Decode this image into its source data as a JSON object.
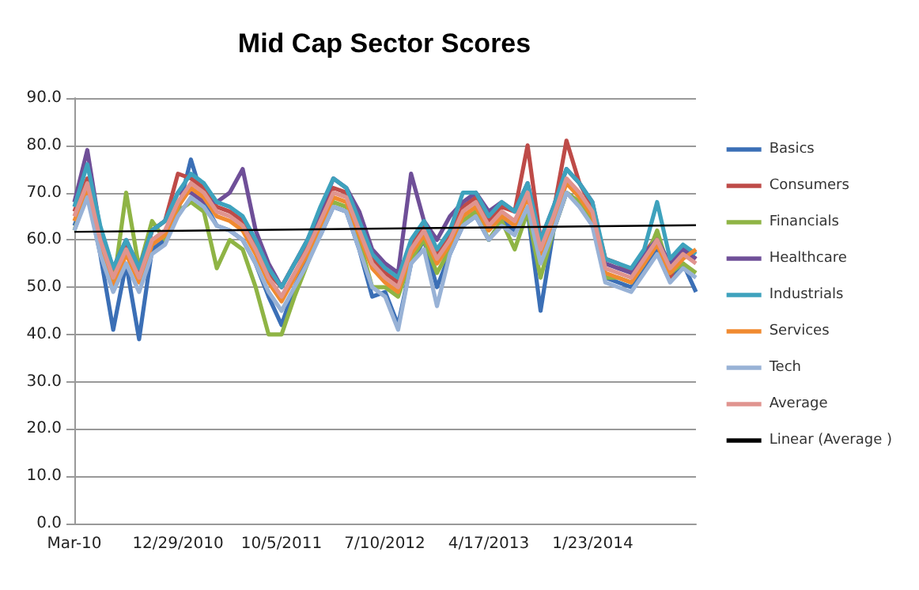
{
  "chart_data": {
    "type": "line",
    "title": "Mid Cap Sector Scores",
    "marker": "none",
    "grid": "y",
    "legend": "right",
    "x": [
      "2010-03-24",
      "2010-04-28",
      "2010-06-02",
      "2010-07-07",
      "2010-08-11",
      "2010-09-15",
      "2010-10-20",
      "2010-11-24",
      "2010-12-29",
      "2011-02-02",
      "2011-03-09",
      "2011-04-13",
      "2011-05-18",
      "2011-06-22",
      "2011-07-27",
      "2011-08-31",
      "2011-10-05",
      "2011-11-09",
      "2011-12-14",
      "2012-01-18",
      "2012-02-22",
      "2012-03-28",
      "2012-05-02",
      "2012-06-06",
      "2012-07-11",
      "2012-08-15",
      "2012-09-19",
      "2012-10-24",
      "2012-11-28",
      "2013-01-02",
      "2013-02-06",
      "2013-03-13",
      "2013-04-17",
      "2013-05-22",
      "2013-06-26",
      "2013-07-31",
      "2013-09-04",
      "2013-10-09",
      "2013-11-13",
      "2013-12-18",
      "2014-01-22",
      "2014-02-26",
      "2014-04-02",
      "2014-05-07",
      "2014-06-11",
      "2014-07-16",
      "2014-08-20",
      "2014-09-24",
      "2014-10-29"
    ],
    "xlim": [
      "2010-03-24",
      "2014-10-29"
    ],
    "xticks": [
      {
        "value": "2010-03-24",
        "label": "Mar-10"
      },
      {
        "value": "2010-12-29",
        "label": "12/29/2010"
      },
      {
        "value": "2011-10-05",
        "label": "10/5/2011"
      },
      {
        "value": "2012-07-10",
        "label": "7/10/2012"
      },
      {
        "value": "2013-04-17",
        "label": "4/17/2013"
      },
      {
        "value": "2014-01-23",
        "label": "1/23/2014"
      }
    ],
    "ylim": [
      0,
      90
    ],
    "yticks": [
      {
        "value": 0,
        "label": "0.0"
      },
      {
        "value": 10,
        "label": "10.0"
      },
      {
        "value": 20,
        "label": "20.0"
      },
      {
        "value": 30,
        "label": "30.0"
      },
      {
        "value": 40,
        "label": "40.0"
      },
      {
        "value": 50,
        "label": "50.0"
      },
      {
        "value": 60,
        "label": "60.0"
      },
      {
        "value": 70,
        "label": "70.0"
      },
      {
        "value": 80,
        "label": "80.0"
      },
      {
        "value": 90,
        "label": "90.0"
      }
    ],
    "series": [
      {
        "name": "Basics",
        "color": "#3b6fb6",
        "values": [
          63,
          70,
          57,
          41,
          55,
          39,
          58,
          60,
          66,
          77,
          68,
          63,
          62,
          60,
          55,
          48,
          42,
          50,
          56,
          61,
          67,
          66,
          58,
          48,
          49,
          42,
          55,
          60,
          50,
          57,
          63,
          65,
          60,
          64,
          62,
          66,
          45,
          62,
          70,
          68,
          64,
          52,
          51,
          50,
          54,
          58,
          52,
          55,
          49
        ]
      },
      {
        "name": "Consumers",
        "color": "#be4b48",
        "values": [
          66,
          73,
          61,
          53,
          59,
          53,
          62,
          64,
          74,
          73,
          71,
          67,
          66,
          64,
          59,
          53,
          50,
          55,
          59,
          65,
          71,
          70,
          63,
          56,
          53,
          51,
          59,
          63,
          57,
          61,
          67,
          69,
          64,
          67,
          66,
          80,
          60,
          66,
          81,
          72,
          67,
          56,
          55,
          53,
          57,
          61,
          52,
          58,
          56
        ]
      },
      {
        "name": "Financials",
        "color": "#8fb445",
        "values": [
          62,
          70,
          58,
          50,
          70,
          54,
          64,
          60,
          66,
          68,
          66,
          54,
          60,
          58,
          50,
          40,
          40,
          48,
          55,
          62,
          68,
          67,
          60,
          50,
          50,
          48,
          56,
          60,
          53,
          58,
          64,
          66,
          60,
          64,
          58,
          66,
          52,
          62,
          70,
          68,
          64,
          52,
          52,
          51,
          55,
          62,
          53,
          55,
          53
        ]
      },
      {
        "name": "Healthcare",
        "color": "#6f4f98",
        "values": [
          68,
          79,
          62,
          54,
          60,
          54,
          62,
          64,
          70,
          70,
          68,
          68,
          70,
          75,
          62,
          55,
          50,
          55,
          60,
          66,
          73,
          71,
          66,
          58,
          55,
          53,
          74,
          64,
          60,
          65,
          68,
          70,
          66,
          68,
          66,
          72,
          60,
          67,
          75,
          72,
          68,
          55,
          54,
          53,
          57,
          60,
          55,
          58,
          56
        ]
      },
      {
        "name": "Industrials",
        "color": "#3ea2bd",
        "values": [
          67,
          76,
          63,
          54,
          60,
          54,
          62,
          64,
          70,
          74,
          72,
          68,
          67,
          65,
          60,
          54,
          50,
          55,
          60,
          67,
          73,
          71,
          64,
          57,
          54,
          52,
          60,
          64,
          58,
          62,
          70,
          70,
          65,
          68,
          66,
          72,
          60,
          67,
          75,
          72,
          68,
          56,
          55,
          54,
          58,
          68,
          56,
          59,
          57
        ]
      },
      {
        "name": "Services",
        "color": "#f08a30",
        "values": [
          64,
          71,
          59,
          50,
          57,
          51,
          59,
          61,
          67,
          71,
          69,
          65,
          64,
          62,
          57,
          51,
          47,
          52,
          57,
          63,
          69,
          68,
          61,
          54,
          51,
          49,
          57,
          61,
          55,
          59,
          65,
          67,
          62,
          65,
          63,
          69,
          57,
          64,
          72,
          69,
          65,
          53,
          52,
          51,
          55,
          59,
          53,
          56,
          58
        ]
      },
      {
        "name": "Tech",
        "color": "#98b2d6",
        "values": [
          62,
          69,
          57,
          49,
          55,
          49,
          57,
          59,
          65,
          69,
          67,
          63,
          62,
          60,
          55,
          49,
          45,
          50,
          55,
          61,
          67,
          66,
          58,
          50,
          48,
          41,
          55,
          58,
          46,
          57,
          63,
          65,
          60,
          63,
          61,
          67,
          55,
          62,
          70,
          67,
          63,
          51,
          50,
          49,
          53,
          57,
          51,
          54,
          52
        ]
      },
      {
        "name": "Average",
        "color": "#e0948f",
        "values": [
          65,
          72,
          60,
          52,
          58,
          52,
          60,
          62,
          68,
          72,
          70,
          66,
          65,
          63,
          58,
          52,
          48,
          53,
          58,
          64,
          70,
          69,
          62,
          55,
          52,
          50,
          58,
          62,
          56,
          60,
          66,
          68,
          63,
          66,
          64,
          70,
          58,
          65,
          73,
          70,
          66,
          54,
          53,
          52,
          56,
          60,
          54,
          57,
          55
        ]
      },
      {
        "name": "Linear (Average )",
        "color": "#000000",
        "x": [
          "2010-03-24",
          "2014-10-29"
        ],
        "values": [
          61.7,
          63.1
        ]
      }
    ]
  }
}
